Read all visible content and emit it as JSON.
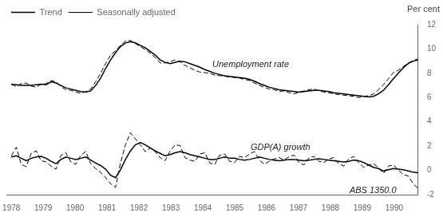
{
  "chart_data": {
    "type": "line",
    "ylabel": "Per cent",
    "x": [
      1978,
      1978.1555,
      1978.311,
      1978.4665,
      1978.622,
      1978.7774,
      1978.9329,
      1979.0884,
      1979.2439,
      1979.3994,
      1979.5549,
      1979.7104,
      1979.8659,
      1980.0213,
      1980.1768,
      1980.3323,
      1980.4878,
      1980.6433,
      1980.7988,
      1980.9543,
      1981.1098,
      1981.2652,
      1981.4207,
      1981.5762,
      1981.7317,
      1981.8872,
      1982.0427,
      1982.1982,
      1982.3537,
      1982.5091,
      1982.6646,
      1982.8201,
      1982.9756,
      1983.1311,
      1983.2866,
      1983.4421,
      1983.5976,
      1983.753,
      1983.9085,
      1984.064,
      1984.2195,
      1984.375,
      1984.5305,
      1984.686,
      1984.8415,
      1984.997,
      1985.1524,
      1985.3079,
      1985.4634,
      1985.6189,
      1985.7744,
      1985.9299,
      1986.0854,
      1986.2409,
      1986.3963,
      1986.5518,
      1986.7073,
      1986.8628,
      1987.0183,
      1987.1738,
      1987.3293,
      1987.4848,
      1987.6402,
      1987.7957,
      1987.9512,
      1988.1067,
      1988.2622,
      1988.4177,
      1988.5732,
      1988.7287,
      1988.8841,
      1989.0396,
      1989.1951,
      1989.3506,
      1989.5061,
      1989.6616,
      1989.8171,
      1989.9726,
      1990.128,
      1990.2835,
      1990.439,
      1990.5945,
      1990.75
    ],
    "xlim": [
      1977.85,
      1990.75
    ],
    "xticks": [
      1978,
      1979,
      1980,
      1981,
      1982,
      1983,
      1984,
      1985,
      1986,
      1987,
      1988,
      1989,
      1990
    ],
    "ylim": [
      -2,
      12
    ],
    "yticks": [
      -2,
      0,
      2,
      4,
      6,
      8,
      10,
      12
    ],
    "grid": false,
    "legend": "upper left",
    "series": [
      {
        "name": "Trend",
        "color": "#000000",
        "line_style": "solid",
        "values": [
          7.1,
          7.05,
          7.0,
          7.0,
          7.0,
          7.05,
          7.1,
          7.05,
          7.3,
          7.2,
          7.0,
          6.8,
          6.7,
          6.6,
          6.5,
          6.45,
          6.55,
          7.0,
          7.6,
          8.4,
          9.1,
          9.7,
          10.2,
          10.5,
          10.6,
          10.5,
          10.3,
          10.1,
          9.8,
          9.5,
          9.1,
          8.9,
          8.8,
          8.9,
          9.0,
          8.95,
          8.8,
          8.65,
          8.5,
          8.3,
          8.15,
          8.0,
          7.9,
          7.8,
          7.75,
          7.7,
          7.65,
          7.6,
          7.5,
          7.35,
          7.15,
          7.0,
          6.85,
          6.75,
          6.65,
          6.6,
          6.55,
          6.5,
          6.45,
          6.5,
          6.55,
          6.6,
          6.6,
          6.55,
          6.5,
          6.4,
          6.35,
          6.3,
          6.25,
          6.2,
          6.15,
          6.1,
          6.05,
          6.1,
          6.3,
          6.6,
          7.05,
          7.55,
          8.0,
          8.45,
          8.8,
          9.0,
          9.1
        ]
      },
      {
        "name": "Seasonally adjusted",
        "color": "#000000",
        "line_style": "dashed",
        "values": [
          7.1,
          6.9,
          7.15,
          7.2,
          6.95,
          6.85,
          7.1,
          7.15,
          7.4,
          7.3,
          6.9,
          6.65,
          6.6,
          6.45,
          6.35,
          6.5,
          6.7,
          7.3,
          8.0,
          8.8,
          9.5,
          9.85,
          10.3,
          10.65,
          10.7,
          10.45,
          10.2,
          9.95,
          9.65,
          9.3,
          8.85,
          8.85,
          8.95,
          9.1,
          8.95,
          8.65,
          8.45,
          8.25,
          8.1,
          8.05,
          8.0,
          7.85,
          7.8,
          7.75,
          7.7,
          7.65,
          7.6,
          7.5,
          7.4,
          7.2,
          7.0,
          6.85,
          6.7,
          6.65,
          6.5,
          6.55,
          6.4,
          6.3,
          6.45,
          6.55,
          6.65,
          6.7,
          6.55,
          6.45,
          6.4,
          6.3,
          6.25,
          6.2,
          6.15,
          6.1,
          6.0,
          6.1,
          6.15,
          6.3,
          6.65,
          7.05,
          7.55,
          8.05,
          8.25,
          8.55,
          8.85,
          9.05,
          9.2
        ]
      },
      {
        "color": "#000000",
        "line_style": "solid",
        "values": [
          1.1,
          1.2,
          1.0,
          0.8,
          1.0,
          1.1,
          1.15,
          1.0,
          0.75,
          0.55,
          0.9,
          1.1,
          1.0,
          0.9,
          1.0,
          1.1,
          0.85,
          0.6,
          0.4,
          0.1,
          -0.4,
          -0.6,
          0.05,
          0.9,
          1.6,
          2.1,
          2.3,
          2.1,
          1.85,
          1.6,
          1.4,
          1.2,
          1.3,
          1.45,
          1.55,
          1.45,
          1.3,
          1.2,
          1.1,
          1.0,
          0.9,
          0.9,
          1.0,
          1.1,
          1.0,
          1.0,
          0.9,
          0.85,
          0.9,
          1.0,
          1.1,
          1.0,
          0.9,
          0.85,
          0.8,
          0.85,
          0.9,
          0.9,
          0.85,
          0.8,
          0.85,
          0.9,
          0.95,
          0.9,
          0.85,
          0.8,
          0.75,
          0.7,
          0.75,
          0.85,
          0.8,
          0.65,
          0.45,
          0.25,
          0.15,
          -0.05,
          0.05,
          0.15,
          0.1,
          0.05,
          -0.05,
          -0.15,
          -0.2
        ]
      },
      {
        "color": "#000000",
        "line_style": "dashed",
        "values": [
          1.2,
          1.9,
          0.5,
          0.3,
          1.4,
          1.6,
          0.8,
          0.7,
          0.35,
          0.1,
          1.25,
          1.45,
          0.7,
          0.5,
          1.25,
          1.55,
          0.55,
          0.15,
          -0.15,
          -0.6,
          -1.1,
          -1.4,
          0.6,
          2.1,
          3.1,
          2.6,
          2.1,
          1.55,
          1.85,
          1.55,
          1.05,
          0.8,
          1.6,
          2.1,
          2.05,
          1.05,
          0.85,
          0.75,
          1.35,
          1.45,
          0.6,
          0.5,
          1.25,
          1.35,
          0.75,
          0.65,
          1.15,
          1.05,
          1.35,
          1.55,
          0.85,
          0.5,
          0.75,
          0.95,
          1.05,
          0.85,
          1.15,
          1.25,
          0.65,
          0.45,
          1.05,
          1.15,
          0.75,
          0.65,
          0.95,
          1.05,
          0.55,
          0.35,
          0.95,
          1.15,
          0.65,
          0.25,
          0.45,
          0.55,
          0.25,
          -0.25,
          0.35,
          0.45,
          0.05,
          -0.35,
          -0.45,
          -1.1,
          -1.5
        ]
      }
    ],
    "annotations": [
      {
        "text": "Unemployment rate",
        "x": 1984.3,
        "y": 8.5
      },
      {
        "text": "GDP(A) growth",
        "x": 1985.5,
        "y": 1.65
      },
      {
        "text": "ABS 1350.0",
        "x": 1988.6,
        "y": -1.85
      }
    ]
  }
}
